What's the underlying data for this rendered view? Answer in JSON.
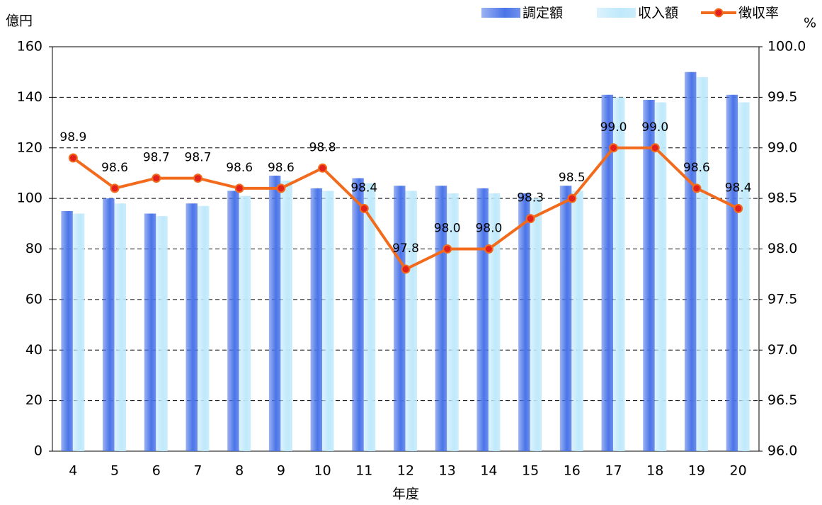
{
  "chart_data": {
    "type": "bar-line",
    "y_label": "億円",
    "y2_label": "%",
    "x_label": "年度",
    "categories": [
      "4",
      "5",
      "6",
      "7",
      "8",
      "9",
      "10",
      "11",
      "12",
      "13",
      "14",
      "15",
      "16",
      "17",
      "18",
      "19",
      "20"
    ],
    "series": [
      {
        "name": "調定額",
        "type": "bar",
        "color": "#4a74e8",
        "values": [
          95,
          100,
          94,
          98,
          103,
          109,
          104,
          108,
          105,
          105,
          104,
          102,
          105,
          141,
          139,
          150,
          141
        ]
      },
      {
        "name": "収入額",
        "type": "bar",
        "color": "#bfe9fb",
        "values": [
          94,
          98,
          93,
          97,
          101,
          107,
          103,
          106,
          103,
          102,
          102,
          100,
          103,
          140,
          138,
          148,
          138
        ]
      },
      {
        "name": "徴収率",
        "type": "line",
        "axis": "y2",
        "color": "#f26b1d",
        "marker_color": "#e3211c",
        "values": [
          98.9,
          98.6,
          98.7,
          98.7,
          98.6,
          98.6,
          98.8,
          98.4,
          97.8,
          98.0,
          98.0,
          98.3,
          98.5,
          99.0,
          99.0,
          98.6,
          98.4
        ],
        "value_labels": [
          "98.9",
          "98.6",
          "98.7",
          "98.7",
          "98.6",
          "98.6",
          "98.8",
          "98.4",
          "97.8",
          "98.0",
          "98.0",
          "98.3",
          "98.5",
          "99.0",
          "99.0",
          "98.6",
          "98.4"
        ]
      }
    ],
    "ylim": [
      0,
      160
    ],
    "yticks": [
      0,
      20,
      40,
      60,
      80,
      100,
      120,
      140,
      160
    ],
    "y2lim": [
      96,
      100
    ],
    "y2ticks": [
      {
        "value": 96,
        "label": "96.0"
      },
      {
        "value": 96.5,
        "label": "96.5"
      },
      {
        "value": 97,
        "label": "97.0"
      },
      {
        "value": 97.5,
        "label": "97.5"
      },
      {
        "value": 98,
        "label": "98.0"
      },
      {
        "value": 98.5,
        "label": "98.5"
      },
      {
        "value": 99,
        "label": "99.0"
      },
      {
        "value": 99.5,
        "label": "99.5"
      },
      {
        "value": 100,
        "label": "100.0"
      }
    ],
    "grid": true,
    "legend": "top-right"
  }
}
